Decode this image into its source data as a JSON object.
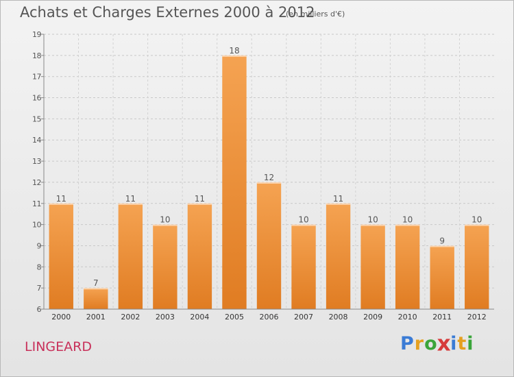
{
  "chart_data": {
    "type": "bar",
    "title": "Achats et Charges Externes 2000 à 2012",
    "subtitle": "(en milliers d'€)",
    "categories": [
      "2000",
      "2001",
      "2002",
      "2003",
      "2004",
      "2005",
      "2006",
      "2007",
      "2008",
      "2009",
      "2010",
      "2011",
      "2012"
    ],
    "values": [
      11,
      7,
      11,
      10,
      11,
      18,
      12,
      10,
      11,
      10,
      10,
      9,
      10
    ],
    "ylim": [
      6,
      19
    ],
    "yticks": [
      6,
      7,
      8,
      9,
      10,
      11,
      12,
      13,
      14,
      15,
      16,
      17,
      18,
      19
    ],
    "grid": true,
    "bar_color": "#e07c22",
    "bar_color_light": "#f5a352"
  },
  "commune": "LINGEARD",
  "logo": {
    "letters": [
      {
        "char": "P",
        "color": "#3a7bd5"
      },
      {
        "char": "r",
        "color": "#e5a020"
      },
      {
        "char": "o",
        "color": "#3aa53a"
      },
      {
        "char": "x",
        "color": "#d63c3c"
      },
      {
        "char": "i",
        "color": "#3a7bd5"
      },
      {
        "char": "t",
        "color": "#e5a020"
      },
      {
        "char": "i",
        "color": "#3aa53a"
      }
    ]
  }
}
